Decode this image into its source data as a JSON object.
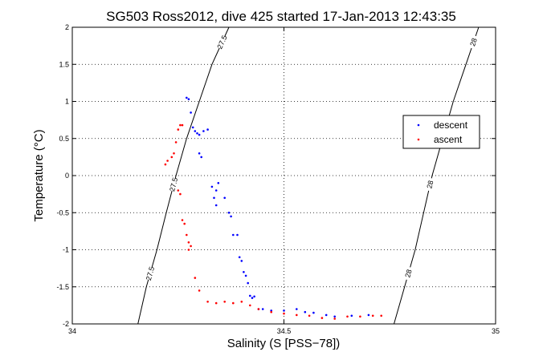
{
  "chart_data": {
    "type": "scatter",
    "title": "SG503 Ross2012, dive 425 started 17-Jan-2013 12:43:35",
    "xlabel": "Salinity (S [PSS−78])",
    "ylabel": "Temperature (°C)",
    "xlim": [
      34,
      35
    ],
    "ylim": [
      -2,
      2
    ],
    "xticks": [
      "34",
      "34.5",
      "35"
    ],
    "yticks": [
      "-2",
      "-1.5",
      "-1",
      "-0.5",
      "0",
      "0.5",
      "1",
      "1.5",
      "2"
    ],
    "grid": true,
    "legend_position": "right",
    "series": [
      {
        "name": "descent",
        "color": "#0000ff",
        "points": [
          [
            34.27,
            1.05
          ],
          [
            34.275,
            1.03
          ],
          [
            34.28,
            0.85
          ],
          [
            34.285,
            0.65
          ],
          [
            34.29,
            0.6
          ],
          [
            34.295,
            0.57
          ],
          [
            34.3,
            0.55
          ],
          [
            34.31,
            0.6
          ],
          [
            34.32,
            0.62
          ],
          [
            34.3,
            0.3
          ],
          [
            34.305,
            0.25
          ],
          [
            34.33,
            -0.15
          ],
          [
            34.34,
            -0.2
          ],
          [
            34.335,
            -0.3
          ],
          [
            34.34,
            -0.4
          ],
          [
            34.345,
            -0.1
          ],
          [
            34.36,
            -0.3
          ],
          [
            34.37,
            -0.5
          ],
          [
            34.375,
            -0.55
          ],
          [
            34.38,
            -0.8
          ],
          [
            34.39,
            -0.8
          ],
          [
            34.395,
            -1.1
          ],
          [
            34.4,
            -1.15
          ],
          [
            34.405,
            -1.3
          ],
          [
            34.41,
            -1.35
          ],
          [
            34.415,
            -1.45
          ],
          [
            34.42,
            -1.62
          ],
          [
            34.425,
            -1.65
          ],
          [
            34.43,
            -1.63
          ],
          [
            34.44,
            -1.8
          ],
          [
            34.45,
            -1.8
          ],
          [
            34.47,
            -1.82
          ],
          [
            34.5,
            -1.82
          ],
          [
            34.53,
            -1.8
          ],
          [
            34.55,
            -1.84
          ],
          [
            34.57,
            -1.85
          ],
          [
            34.6,
            -1.88
          ],
          [
            34.62,
            -1.9
          ],
          [
            34.66,
            -1.89
          ],
          [
            34.7,
            -1.88
          ]
        ]
      },
      {
        "name": "ascent",
        "color": "#ff0000",
        "points": [
          [
            34.26,
            0.68
          ],
          [
            34.255,
            0.68
          ],
          [
            34.25,
            0.62
          ],
          [
            34.245,
            0.45
          ],
          [
            34.24,
            0.3
          ],
          [
            34.235,
            0.25
          ],
          [
            34.225,
            0.2
          ],
          [
            34.22,
            0.15
          ],
          [
            34.25,
            -0.2
          ],
          [
            34.255,
            -0.25
          ],
          [
            34.26,
            -0.6
          ],
          [
            34.265,
            -0.65
          ],
          [
            34.27,
            -0.8
          ],
          [
            34.275,
            -0.9
          ],
          [
            34.28,
            -0.95
          ],
          [
            34.275,
            -1.0
          ],
          [
            34.29,
            -1.38
          ],
          [
            34.3,
            -1.55
          ],
          [
            34.32,
            -1.7
          ],
          [
            34.34,
            -1.72
          ],
          [
            34.36,
            -1.7
          ],
          [
            34.38,
            -1.72
          ],
          [
            34.4,
            -1.7
          ],
          [
            34.42,
            -1.75
          ],
          [
            34.44,
            -1.8
          ],
          [
            34.47,
            -1.84
          ],
          [
            34.5,
            -1.86
          ],
          [
            34.53,
            -1.88
          ],
          [
            34.56,
            -1.89
          ],
          [
            34.59,
            -1.92
          ],
          [
            34.62,
            -1.93
          ],
          [
            34.65,
            -1.9
          ],
          [
            34.68,
            -1.9
          ],
          [
            34.71,
            -1.89
          ],
          [
            34.73,
            -1.89
          ]
        ]
      }
    ],
    "contours": [
      {
        "label": "27.5",
        "labels_shown": [
          "27.5",
          "27.5",
          "27.5"
        ],
        "points": [
          [
            34.155,
            -2
          ],
          [
            34.175,
            -1.5
          ],
          [
            34.2,
            -1.0
          ],
          [
            34.222,
            -0.5
          ],
          [
            34.245,
            0
          ],
          [
            34.27,
            0.5
          ],
          [
            34.3,
            1.0
          ],
          [
            34.33,
            1.5
          ],
          [
            34.37,
            2.0
          ]
        ]
      },
      {
        "label": "28",
        "labels_shown": [
          "28",
          "28",
          "28"
        ],
        "points": [
          [
            34.76,
            -2
          ],
          [
            34.785,
            -1.5
          ],
          [
            34.81,
            -1.0
          ],
          [
            34.83,
            -0.5
          ],
          [
            34.85,
            0
          ],
          [
            34.875,
            0.5
          ],
          [
            34.9,
            1.0
          ],
          [
            34.93,
            1.5
          ],
          [
            34.96,
            2.0
          ]
        ]
      }
    ]
  }
}
